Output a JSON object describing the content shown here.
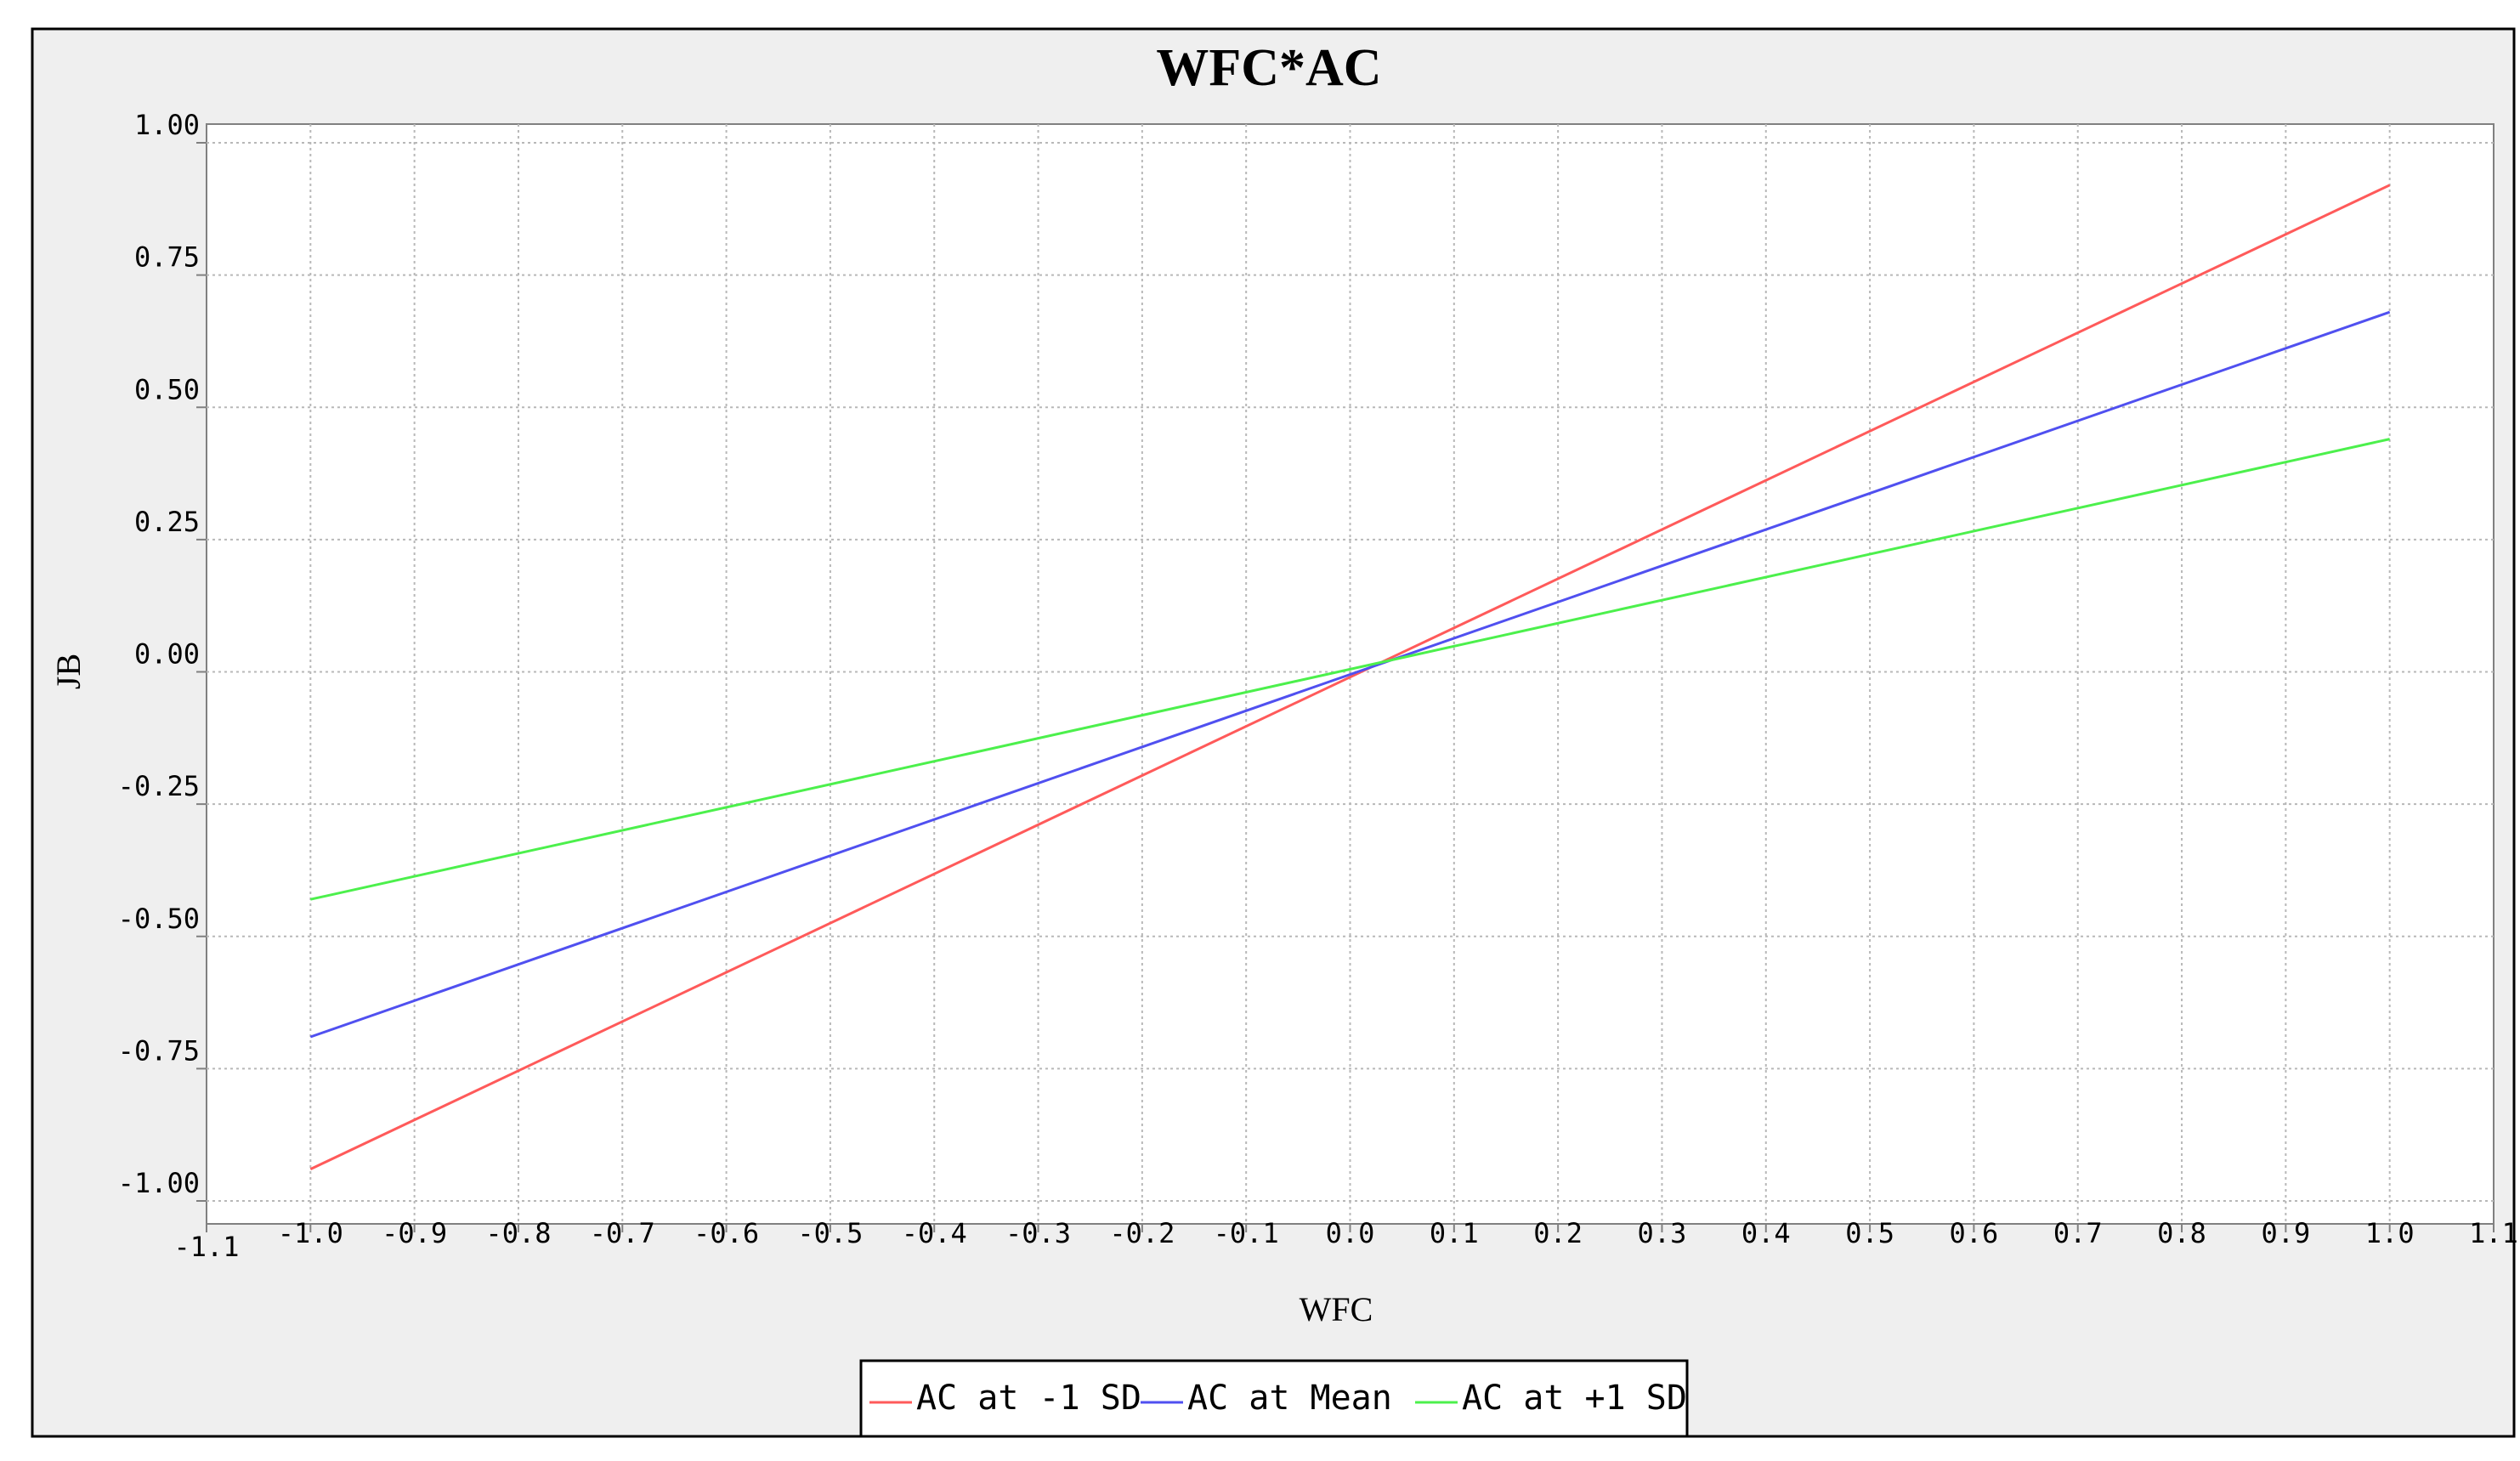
{
  "chart_data": {
    "type": "line",
    "title": "WFC*AC",
    "xlabel": "WFC",
    "ylabel": "JB",
    "xlim": [
      -1.1,
      1.1
    ],
    "ylim": [
      -1.0,
      1.0
    ],
    "x_ticks": [
      "-1.1",
      "-1.0",
      "-0.9",
      "-0.8",
      "-0.7",
      "-0.6",
      "-0.5",
      "-0.4",
      "-0.3",
      "-0.2",
      "-0.1",
      "0.0",
      "0.1",
      "0.2",
      "0.3",
      "0.4",
      "0.5",
      "0.6",
      "0.7",
      "0.8",
      "0.9",
      "1.0",
      "1.1"
    ],
    "y_ticks": [
      "1.00",
      "0.75",
      "0.50",
      "0.25",
      "0.00",
      "-0.25",
      "-0.50",
      "-0.75",
      "-1.00"
    ],
    "grid": true,
    "legend_position": "bottom",
    "series": [
      {
        "name": "AC at -1 SD",
        "color": "#ff5a5a",
        "x": [
          -1.0,
          1.0
        ],
        "y": [
          -0.94,
          0.92
        ]
      },
      {
        "name": "AC at Mean",
        "color": "#5050f0",
        "x": [
          -1.0,
          1.0
        ],
        "y": [
          -0.69,
          0.68
        ]
      },
      {
        "name": "AC at +1 SD",
        "color": "#4cf04c",
        "x": [
          -1.0,
          1.0
        ],
        "y": [
          -0.43,
          0.44
        ]
      }
    ]
  }
}
